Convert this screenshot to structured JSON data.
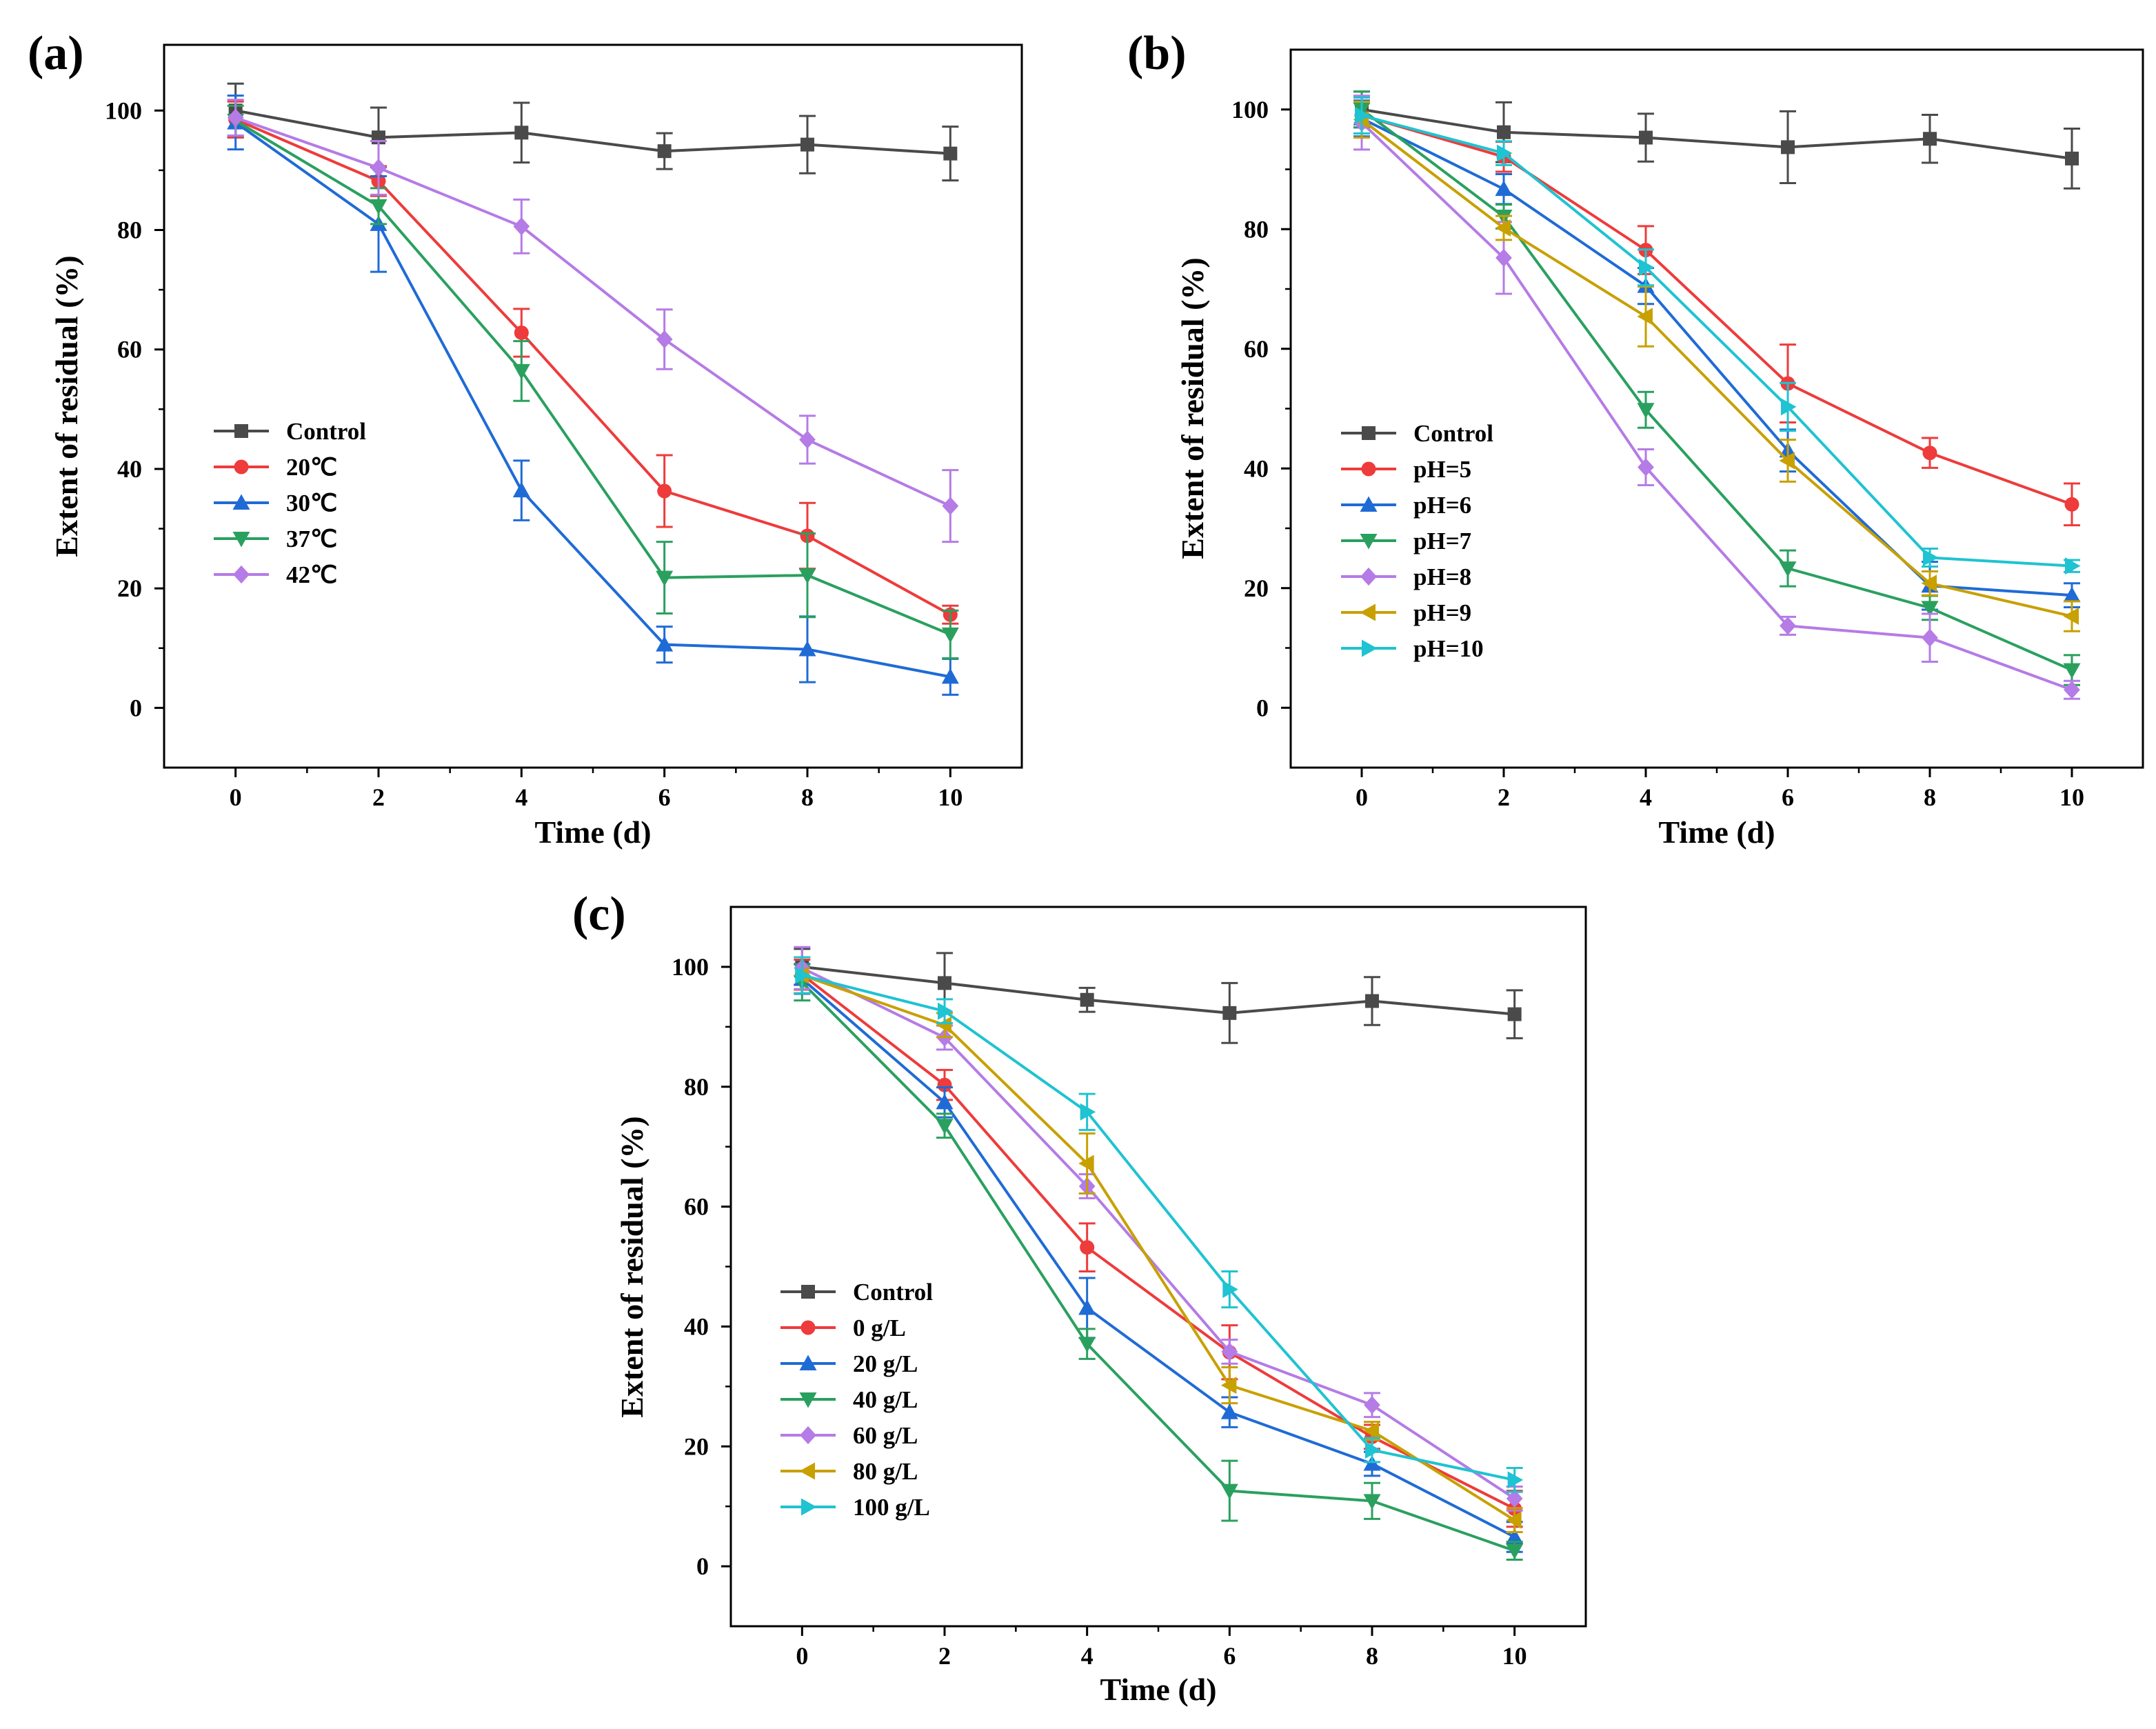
{
  "chart_data": [
    {
      "type": "line",
      "panel_label": "(a)",
      "xlabel": "Time (d)",
      "ylabel": "Extent of residual (%)",
      "x": [
        0,
        2,
        4,
        6,
        8,
        10
      ],
      "xlim": [
        -1,
        11
      ],
      "ylim": [
        -10,
        111
      ],
      "xticks": [
        0,
        2,
        4,
        6,
        8,
        10
      ],
      "yticks": [
        0,
        20,
        40,
        60,
        80,
        100
      ],
      "legend_position": "center-left",
      "series": [
        {
          "name": "Control",
          "color": "#4a4a4a",
          "marker": "square",
          "values": [
            100,
            95.5,
            96.3,
            93.2,
            94.3,
            92.8
          ],
          "errors": [
            4.5,
            5,
            5,
            3,
            4.8,
            4.5
          ]
        },
        {
          "name": "20℃",
          "color": "#ee3b3b",
          "marker": "circle",
          "values": [
            98.5,
            88.2,
            62.8,
            36.3,
            28.8,
            15.6
          ],
          "errors": [
            3,
            2.5,
            4,
            6,
            5.5,
            1.5
          ]
        },
        {
          "name": "30℃",
          "color": "#1f6bd6",
          "marker": "triangle-up",
          "values": [
            98,
            81,
            36.4,
            10.6,
            9.8,
            5.2
          ],
          "errors": [
            4.5,
            8,
            5,
            3,
            5.5,
            3
          ]
        },
        {
          "name": "37℃",
          "color": "#2aa05f",
          "marker": "triangle-down",
          "values": [
            98.3,
            84,
            56.4,
            21.8,
            22.2,
            12.3
          ],
          "errors": [
            2.5,
            3,
            5,
            6,
            7,
            4
          ]
        },
        {
          "name": "42℃",
          "color": "#b57be6",
          "marker": "diamond",
          "values": [
            98.8,
            90.4,
            80.6,
            61.7,
            44.9,
            33.8
          ],
          "errors": [
            3,
            4.5,
            4.5,
            5,
            4,
            6
          ]
        }
      ]
    },
    {
      "type": "line",
      "panel_label": "(b)",
      "xlabel": "Time (d)",
      "ylabel": "Extent of residual (%)",
      "x": [
        0,
        2,
        4,
        6,
        8,
        10
      ],
      "xlim": [
        -1,
        11
      ],
      "ylim": [
        -10,
        110
      ],
      "xticks": [
        0,
        2,
        4,
        6,
        8,
        10
      ],
      "yticks": [
        0,
        20,
        40,
        60,
        80,
        100
      ],
      "legend_position": "center-left",
      "series": [
        {
          "name": "Control",
          "color": "#4a4a4a",
          "marker": "square",
          "values": [
            100,
            96.2,
            95.3,
            93.7,
            95.1,
            91.8
          ],
          "errors": [
            3,
            5,
            4,
            6,
            4,
            5
          ]
        },
        {
          "name": "pH=5",
          "color": "#ee3b3b",
          "marker": "circle",
          "values": [
            99,
            92.1,
            76.5,
            54.2,
            42.6,
            34
          ],
          "errors": [
            3,
            2.5,
            4,
            6.5,
            2.5,
            3.5
          ]
        },
        {
          "name": "pH=6",
          "color": "#1f6bd6",
          "marker": "triangle-up",
          "values": [
            98.5,
            86.7,
            70.5,
            43,
            20.4,
            18.8
          ],
          "errors": [
            3,
            2.5,
            3,
            3.5,
            4,
            2
          ]
        },
        {
          "name": "pH=7",
          "color": "#2aa05f",
          "marker": "triangle-down",
          "values": [
            100,
            82.1,
            49.8,
            23.3,
            16.7,
            6.3
          ],
          "errors": [
            3,
            2,
            3,
            3,
            2,
            2.5
          ]
        },
        {
          "name": "pH=8",
          "color": "#b57be6",
          "marker": "diamond",
          "values": [
            97.8,
            75.2,
            40.2,
            13.7,
            11.7,
            3
          ],
          "errors": [
            4.5,
            6,
            3,
            1.5,
            4,
            1.5
          ]
        },
        {
          "name": "pH=9",
          "color": "#c8a000",
          "marker": "triangle-left",
          "values": [
            98.3,
            80.2,
            65.4,
            41.3,
            20.8,
            15.3
          ],
          "errors": [
            3,
            2,
            5,
            3.5,
            2,
            2.5
          ]
        },
        {
          "name": "pH=10",
          "color": "#1fc3d1",
          "marker": "triangle-right",
          "values": [
            99,
            92.7,
            73.6,
            50.3,
            25.1,
            23.7
          ],
          "errors": [
            3,
            2,
            3,
            4,
            1.5,
            1
          ]
        }
      ]
    },
    {
      "type": "line",
      "panel_label": "(c)",
      "xlabel": "Time (d)",
      "ylabel": "Extent of residual (%)",
      "x": [
        0,
        2,
        4,
        6,
        8,
        10
      ],
      "xlim": [
        -1,
        11
      ],
      "ylim": [
        -10,
        110
      ],
      "xticks": [
        0,
        2,
        4,
        6,
        8,
        10
      ],
      "yticks": [
        0,
        20,
        40,
        60,
        80,
        100
      ],
      "legend_position": "center-left",
      "series": [
        {
          "name": "Control",
          "color": "#4a4a4a",
          "marker": "square",
          "values": [
            100,
            97.3,
            94.5,
            92.3,
            94.3,
            92.1
          ],
          "errors": [
            3,
            5,
            2,
            5,
            4,
            4
          ]
        },
        {
          "name": "0 g/L",
          "color": "#ee3b3b",
          "marker": "circle",
          "values": [
            98.7,
            80.3,
            53.2,
            35.7,
            21.6,
            9.6
          ],
          "errors": [
            2.5,
            2.5,
            4,
            4.5,
            2,
            3
          ]
        },
        {
          "name": "20 g/L",
          "color": "#1f6bd6",
          "marker": "triangle-up",
          "values": [
            98,
            77.4,
            43.1,
            25.7,
            17.1,
            4.9
          ],
          "errors": [
            2.5,
            2.5,
            5,
            2.5,
            2,
            2.5
          ]
        },
        {
          "name": "40 g/L",
          "color": "#2aa05f",
          "marker": "triangle-down",
          "values": [
            97.4,
            73.5,
            37.1,
            12.6,
            10.9,
            2.6
          ],
          "errors": [
            3,
            2,
            2.5,
            5,
            3,
            1.5
          ]
        },
        {
          "name": "60 g/L",
          "color": "#b57be6",
          "marker": "diamond",
          "values": [
            99.8,
            88.2,
            63.4,
            35.8,
            26.9,
            11.3
          ],
          "errors": [
            3.5,
            2,
            2,
            2,
            2,
            2
          ]
        },
        {
          "name": "80 g/L",
          "color": "#c8a000",
          "marker": "triangle-left",
          "values": [
            98.6,
            90.3,
            67.2,
            30.2,
            22.6,
            7.7
          ],
          "errors": [
            3,
            2,
            5,
            3,
            1.5,
            2
          ]
        },
        {
          "name": "100 g/L",
          "color": "#1fc3d1",
          "marker": "triangle-right",
          "values": [
            98.6,
            92.6,
            75.8,
            46.2,
            19.4,
            14.4
          ],
          "errors": [
            3,
            2,
            3,
            3,
            2,
            2
          ]
        }
      ]
    }
  ]
}
